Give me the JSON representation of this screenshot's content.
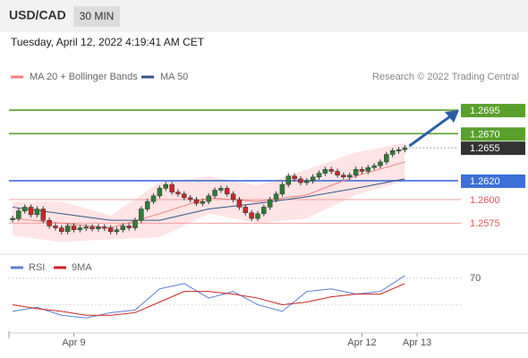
{
  "chart_data": {
    "type": "candlestick",
    "symbol": "USD/CAD",
    "timeframe": "30 MIN",
    "timestamp": "Tuesday, April 12, 2022 4:19:41 AM CET",
    "source": "Research © 2022 Trading Central",
    "closes": [
      1.258,
      1.2588,
      1.2592,
      1.2584,
      1.259,
      1.2578,
      1.2572,
      1.257,
      1.2566,
      1.2572,
      1.2568,
      1.257,
      1.2571,
      1.2569,
      1.2571,
      1.257,
      1.2566,
      1.2568,
      1.2572,
      1.257,
      1.2578,
      1.259,
      1.2598,
      1.2604,
      1.2612,
      1.2616,
      1.2608,
      1.2606,
      1.2602,
      1.26,
      1.2596,
      1.2598,
      1.2604,
      1.261,
      1.2612,
      1.2606,
      1.26,
      1.2592,
      1.2586,
      1.258,
      1.2585,
      1.2592,
      1.26,
      1.2606,
      1.2616,
      1.2625,
      1.2622,
      1.2618,
      1.262,
      1.2624,
      1.2628,
      1.2632,
      1.263,
      1.2626,
      1.2624,
      1.2626,
      1.2632,
      1.263,
      1.2634,
      1.2636,
      1.264,
      1.2648,
      1.2652,
      1.2653,
      1.2655
    ],
    "up_color": "#2e7d32",
    "down_color": "#c62828",
    "ylim": [
      1.2543,
      1.2753
    ],
    "series": [
      {
        "name": "MA 20 + Bollinger Bands",
        "color": "#f08080",
        "band_color": "#fdd9d9",
        "x": [
          0,
          8,
          16,
          24,
          32,
          40,
          48,
          56,
          64
        ],
        "values": [
          1.258,
          1.2575,
          1.257,
          1.2585,
          1.2602,
          1.2598,
          1.2605,
          1.2625,
          1.264
        ],
        "upper": [
          1.2598,
          1.2598,
          1.2583,
          1.2618,
          1.2625,
          1.2615,
          1.2632,
          1.265,
          1.266
        ],
        "lower": [
          1.2562,
          1.2555,
          1.2558,
          1.256,
          1.2585,
          1.2575,
          1.258,
          1.2605,
          1.262
        ]
      },
      {
        "name": "MA 50",
        "color": "#34558b",
        "x": [
          0,
          8,
          16,
          24,
          32,
          40,
          48,
          56,
          64
        ],
        "values": [
          1.2592,
          1.2585,
          1.2578,
          1.2578,
          1.259,
          1.2596,
          1.2603,
          1.2612,
          1.2622
        ]
      }
    ],
    "levels": [
      {
        "value": 1.2695,
        "label": "1.2695",
        "color": "#5aa02c",
        "style": "box"
      },
      {
        "value": 1.267,
        "label": "1.2670",
        "color": "#5aa02c",
        "style": "box"
      },
      {
        "value": 1.2655,
        "label": "1.2655",
        "color": "#333333",
        "style": "current"
      },
      {
        "value": 1.262,
        "label": "1.2620",
        "color": "#3d6fd8",
        "style": "box"
      },
      {
        "value": 1.26,
        "label": "1.2600",
        "color": "#e05555",
        "style": "text"
      },
      {
        "value": 1.2575,
        "label": "1.2575",
        "color": "#e05555",
        "style": "text"
      }
    ],
    "rsi": {
      "ylim": [
        30,
        74
      ],
      "yticks": [
        70
      ],
      "series": [
        {
          "name": "RSI",
          "color": "#5a7fd6",
          "x": [
            0,
            4,
            8,
            12,
            16,
            20,
            24,
            28,
            32,
            36,
            40,
            44,
            48,
            52,
            56,
            60,
            64
          ],
          "values": [
            45,
            48,
            42,
            40,
            44,
            46,
            62,
            66,
            55,
            60,
            50,
            45,
            60,
            62,
            58,
            60,
            72
          ]
        },
        {
          "name": "9MA",
          "color": "#cc2222",
          "x": [
            0,
            4,
            8,
            12,
            16,
            20,
            24,
            28,
            32,
            36,
            40,
            44,
            48,
            52,
            56,
            60,
            64
          ],
          "values": [
            50,
            47,
            45,
            42,
            42,
            44,
            52,
            60,
            60,
            58,
            55,
            50,
            52,
            56,
            58,
            58,
            66
          ]
        }
      ]
    },
    "xticks": [
      {
        "value": 10,
        "label": "Apr 9"
      },
      {
        "value": 57,
        "label": "Apr 12"
      },
      {
        "value": 66,
        "label": "Apr 13"
      }
    ]
  }
}
